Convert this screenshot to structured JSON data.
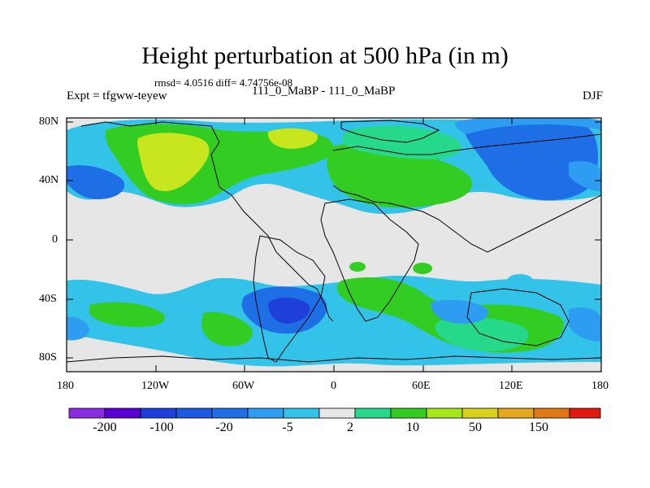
{
  "title": "Height perturbation at 500 hPa (in m)",
  "stats": "rmsd= 4.0516 diff= 4.74756e-08",
  "expt": "Expt = tfgww-teyew",
  "case": "111_0_MaBP - 111_0_MaBP",
  "season": "DJF",
  "lat_ticks": [
    "80N",
    "40N",
    "0",
    "40S",
    "80S"
  ],
  "lon_ticks": [
    "180",
    "120W",
    "60W",
    "0",
    "60E",
    "120E",
    "180"
  ],
  "colorbar": {
    "labels": [
      "-200",
      "-100",
      "-20",
      "-5",
      "2",
      "10",
      "50",
      "150"
    ],
    "colors": [
      "#8a2be2",
      "#5a00d0",
      "#1e3fd8",
      "#1e6ee6",
      "#2e9cf0",
      "#33c3e8",
      "#e6e6e6",
      "#25d88a",
      "#33cc22",
      "#a6e61e",
      "#d8d21e",
      "#e6a81e",
      "#e07818",
      "#e04a14",
      "#e01a10"
    ]
  },
  "palette": {
    "land_fill": "#e6e6e6",
    "blue_dark": "#1e6ee6",
    "blue": "#2e9cf0",
    "cyan": "#33c3e8",
    "mint": "#25d88a",
    "green": "#33cc22",
    "yellowgreen": "#c8e61e"
  }
}
